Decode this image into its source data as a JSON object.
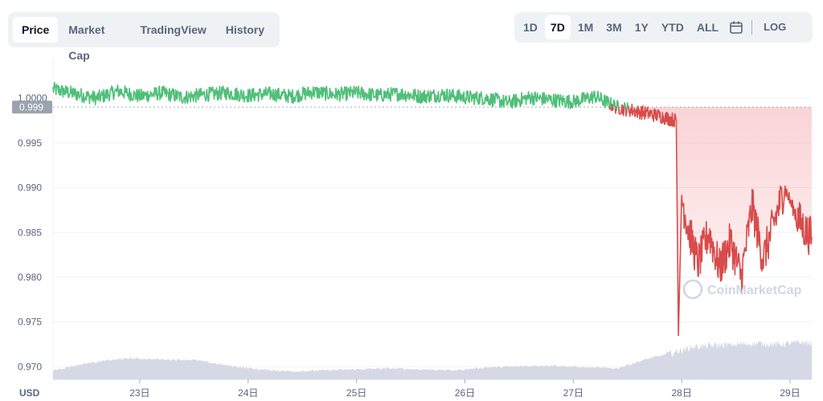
{
  "view_tabs": [
    {
      "label": "Price",
      "active": true
    },
    {
      "label": "Market Cap",
      "active": false
    },
    {
      "label": "TradingView",
      "active": false
    },
    {
      "label": "History",
      "active": false
    }
  ],
  "range_buttons": [
    {
      "label": "1D",
      "active": false
    },
    {
      "label": "7D",
      "active": true
    },
    {
      "label": "1M",
      "active": false
    },
    {
      "label": "3M",
      "active": false
    },
    {
      "label": "1Y",
      "active": false
    },
    {
      "label": "YTD",
      "active": false
    },
    {
      "label": "ALL",
      "active": false
    }
  ],
  "calendar_icon": "calendar-icon",
  "log_label": "LOG",
  "watermark": "CoinMarketCap",
  "colors": {
    "up": "#16c784",
    "up_line": "#4fbf79",
    "down": "#d94b4b",
    "volume": "#d5d9e6",
    "current_price_bg": "#9ca3af"
  },
  "chart_data": {
    "type": "line",
    "title": "",
    "ylabel": "",
    "xlabel": "",
    "unit_label": "USD",
    "current_price": "0.999",
    "reference_value": 0.999,
    "y_ticks": [
      "1.0000",
      "0.995",
      "0.990",
      "0.985",
      "0.980",
      "0.975",
      "0.970"
    ],
    "y_tick_values": [
      1.0,
      0.995,
      0.99,
      0.985,
      0.98,
      0.975,
      0.97
    ],
    "ylim": [
      0.9686,
      1.0045
    ],
    "x_ticks": [
      "23日",
      "24日",
      "25日",
      "26日",
      "27日",
      "28日",
      "29日"
    ],
    "x_tick_values": [
      0,
      1,
      2,
      3,
      4,
      5,
      6
    ],
    "xlim": [
      -0.8,
      6.2
    ],
    "grid": true,
    "legend": "none",
    "series": [
      {
        "x": [
          -0.8,
          -0.6,
          -0.4,
          -0.2,
          0.0,
          0.2,
          0.4,
          0.6,
          0.8,
          1.0,
          1.2,
          1.4,
          1.6,
          1.8,
          2.0,
          2.2,
          2.4,
          2.6,
          2.8,
          3.0,
          3.2,
          3.4,
          3.6,
          3.8,
          4.0,
          4.2,
          4.4,
          4.6,
          4.8,
          4.95,
          4.97,
          5.0,
          5.05,
          5.15,
          5.25,
          5.35,
          5.45,
          5.55,
          5.65,
          5.75,
          5.85,
          5.95,
          6.05,
          6.15,
          6.2
        ],
        "y": [
          1.001,
          1.0005,
          1.0,
          1.0008,
          1.0002,
          1.0006,
          1.0001,
          1.0004,
          1.0006,
          1.0003,
          1.0005,
          1.0002,
          1.0007,
          1.0004,
          1.0006,
          1.0003,
          1.0005,
          1.0002,
          1.0004,
          1.0001,
          1.0,
          0.9995,
          1.0001,
          0.9998,
          0.9996,
          1.0002,
          0.999,
          0.9985,
          0.998,
          0.9975,
          0.9735,
          0.989,
          0.986,
          0.9815,
          0.985,
          0.981,
          0.984,
          0.98,
          0.988,
          0.982,
          0.986,
          0.99,
          0.987,
          0.985,
          0.9845
        ]
      }
    ],
    "volume": {
      "x": [
        -0.8,
        -0.5,
        -0.3,
        -0.1,
        0.2,
        0.5,
        0.8,
        1.1,
        1.4,
        1.7,
        2.0,
        2.3,
        2.6,
        2.9,
        3.2,
        3.5,
        3.8,
        4.1,
        4.4,
        4.7,
        4.95,
        5.1,
        5.3,
        5.5,
        5.7,
        5.9,
        6.1,
        6.2
      ],
      "relative": [
        0.18,
        0.32,
        0.38,
        0.42,
        0.4,
        0.39,
        0.28,
        0.2,
        0.16,
        0.18,
        0.2,
        0.22,
        0.2,
        0.18,
        0.24,
        0.26,
        0.28,
        0.24,
        0.22,
        0.42,
        0.55,
        0.65,
        0.68,
        0.7,
        0.72,
        0.7,
        0.74,
        0.73
      ]
    }
  }
}
